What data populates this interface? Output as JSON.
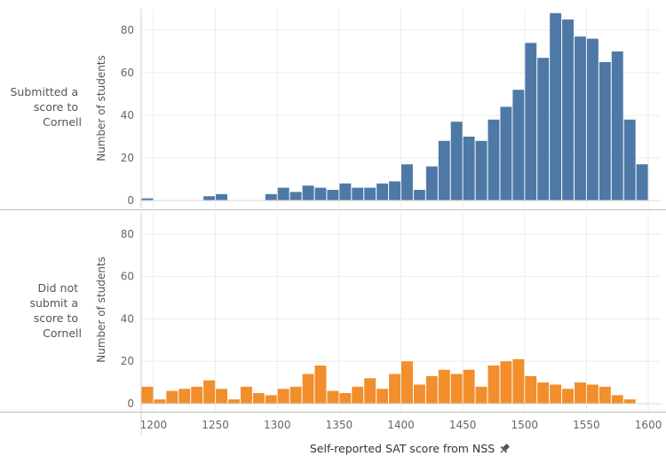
{
  "chart_data": {
    "type": "bar",
    "xlabel": "Self-reported SAT score from NSS",
    "ylabel": "Number of students",
    "xlim": [
      1190,
      1610
    ],
    "ylim": [
      0,
      90
    ],
    "x_ticks": [
      "1200",
      "1250",
      "1300",
      "1350",
      "1400",
      "1450",
      "1500",
      "1550",
      "1600"
    ],
    "y_ticks": [
      "0",
      "20",
      "40",
      "60",
      "80"
    ],
    "bin_width": 10,
    "bin_starts": [
      1190,
      1200,
      1210,
      1220,
      1230,
      1240,
      1250,
      1260,
      1270,
      1280,
      1290,
      1300,
      1310,
      1320,
      1330,
      1340,
      1350,
      1360,
      1370,
      1380,
      1390,
      1400,
      1410,
      1420,
      1430,
      1440,
      1450,
      1460,
      1470,
      1480,
      1490,
      1500,
      1510,
      1520,
      1530,
      1540,
      1550,
      1560,
      1570,
      1580,
      1590,
      1600
    ],
    "grid": true,
    "series": [
      {
        "row_label": [
          "Submitted a",
          "score to",
          "Cornell"
        ],
        "color": "#4e79a7",
        "values": [
          1,
          0,
          0,
          0,
          0,
          2,
          3,
          0,
          0,
          0,
          3,
          6,
          4,
          7,
          6,
          5,
          8,
          6,
          6,
          8,
          9,
          17,
          5,
          16,
          28,
          37,
          30,
          28,
          38,
          44,
          52,
          74,
          67,
          88,
          85,
          77,
          76,
          65,
          70,
          38,
          17,
          0
        ]
      },
      {
        "row_label": [
          "Did not",
          "submit a",
          "score to",
          "Cornell"
        ],
        "color": "#f28e2b",
        "values": [
          8,
          2,
          6,
          7,
          8,
          11,
          7,
          2,
          8,
          5,
          4,
          7,
          8,
          14,
          18,
          6,
          5,
          8,
          12,
          7,
          14,
          20,
          9,
          13,
          16,
          14,
          16,
          8,
          18,
          20,
          21,
          13,
          10,
          9,
          7,
          10,
          9,
          8,
          4,
          2,
          0,
          0
        ]
      }
    ]
  },
  "pin_icon": "pin-icon"
}
